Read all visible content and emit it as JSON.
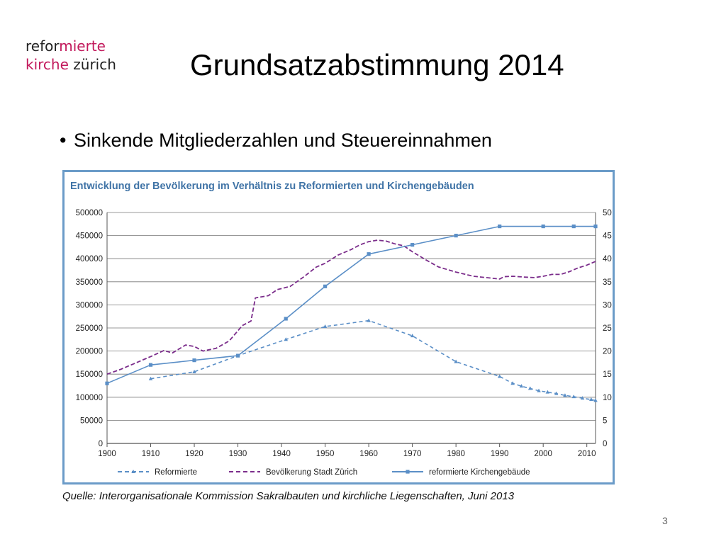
{
  "logo": {
    "line1_a": "refor",
    "line1_b": "mierte",
    "line2_a": "kirche",
    "line2_b": " zürich"
  },
  "page_title": "Grundsatzabstimmung 2014",
  "bullet": {
    "symbol": "•",
    "text": "Sinkende Mitgliederzahlen und Steuereinnahmen"
  },
  "source": "Quelle: Interorganisationale Kommission Sakralbauten und kirchliche Liegenschaften, Juni 2013",
  "page_number": "3",
  "chart_data": {
    "type": "line",
    "title": "Entwicklung der Bevölkerung im Verhältnis zu Reformierten und Kirchengebäuden",
    "x_range": [
      1900,
      2012
    ],
    "x_ticks": [
      "1900",
      "1910",
      "1920",
      "1930",
      "1940",
      "1950",
      "1960",
      "1970",
      "1980",
      "1990",
      "2000",
      "2010"
    ],
    "y_left_range": [
      0,
      500000
    ],
    "y_left_ticks": [
      "0",
      "50000",
      "100000",
      "150000",
      "200000",
      "250000",
      "300000",
      "350000",
      "400000",
      "450000",
      "500000"
    ],
    "y_right_range": [
      0,
      50
    ],
    "y_right_ticks": [
      "0",
      "5",
      "10",
      "15",
      "20",
      "25",
      "30",
      "35",
      "40",
      "45",
      "50"
    ],
    "grid": true,
    "legend_position": "bottom",
    "series": [
      {
        "name": "Reformierte",
        "axis": "left",
        "color": "#5b8fc7",
        "style": "dashed",
        "marker": "triangle",
        "points": [
          [
            1910,
            140000
          ],
          [
            1920,
            155000
          ],
          [
            1930,
            190000
          ],
          [
            1941,
            225000
          ],
          [
            1950,
            253000
          ],
          [
            1960,
            266000
          ],
          [
            1970,
            233000
          ],
          [
            1980,
            177000
          ],
          [
            1990,
            145000
          ],
          [
            1993,
            130000
          ],
          [
            1995,
            124000
          ],
          [
            1997,
            119000
          ],
          [
            1999,
            114000
          ],
          [
            2001,
            111000
          ],
          [
            2003,
            108000
          ],
          [
            2005,
            104000
          ],
          [
            2007,
            101000
          ],
          [
            2009,
            98000
          ],
          [
            2011,
            95000
          ],
          [
            2012,
            93000
          ]
        ]
      },
      {
        "name": "Bevölkerung Stadt Zürich",
        "axis": "left",
        "color": "#7b2d8b",
        "style": "dashed",
        "marker": "none",
        "points": [
          [
            1900,
            150000
          ],
          [
            1903,
            160000
          ],
          [
            1906,
            172000
          ],
          [
            1910,
            188000
          ],
          [
            1913,
            201000
          ],
          [
            1915,
            196000
          ],
          [
            1918,
            213000
          ],
          [
            1920,
            210000
          ],
          [
            1922,
            200000
          ],
          [
            1925,
            206000
          ],
          [
            1928,
            222000
          ],
          [
            1931,
            255000
          ],
          [
            1933,
            265000
          ],
          [
            1934,
            315000
          ],
          [
            1937,
            320000
          ],
          [
            1939,
            333000
          ],
          [
            1942,
            340000
          ],
          [
            1945,
            360000
          ],
          [
            1948,
            382000
          ],
          [
            1950,
            390000
          ],
          [
            1953,
            408000
          ],
          [
            1956,
            420000
          ],
          [
            1958,
            430000
          ],
          [
            1960,
            437000
          ],
          [
            1962,
            440000
          ],
          [
            1964,
            438000
          ],
          [
            1966,
            432000
          ],
          [
            1968,
            428000
          ],
          [
            1970,
            415000
          ],
          [
            1973,
            398000
          ],
          [
            1976,
            382000
          ],
          [
            1980,
            371000
          ],
          [
            1984,
            362000
          ],
          [
            1988,
            358000
          ],
          [
            1990,
            356000
          ],
          [
            1991,
            361000
          ],
          [
            1993,
            362000
          ],
          [
            1996,
            360000
          ],
          [
            1998,
            359000
          ],
          [
            2000,
            362000
          ],
          [
            2002,
            366000
          ],
          [
            2004,
            366000
          ],
          [
            2006,
            372000
          ],
          [
            2008,
            380000
          ],
          [
            2010,
            386000
          ],
          [
            2012,
            394000
          ]
        ]
      },
      {
        "name": "reformierte Kirchengebäude",
        "axis": "right",
        "color": "#5b8fc7",
        "style": "solid",
        "marker": "square",
        "points": [
          [
            1900,
            13
          ],
          [
            1910,
            17
          ],
          [
            1920,
            18
          ],
          [
            1930,
            19
          ],
          [
            1941,
            27
          ],
          [
            1950,
            34
          ],
          [
            1960,
            41
          ],
          [
            1970,
            43
          ],
          [
            1980,
            45
          ],
          [
            1990,
            47
          ],
          [
            2000,
            47
          ],
          [
            2007,
            47
          ],
          [
            2012,
            47
          ]
        ]
      }
    ]
  }
}
